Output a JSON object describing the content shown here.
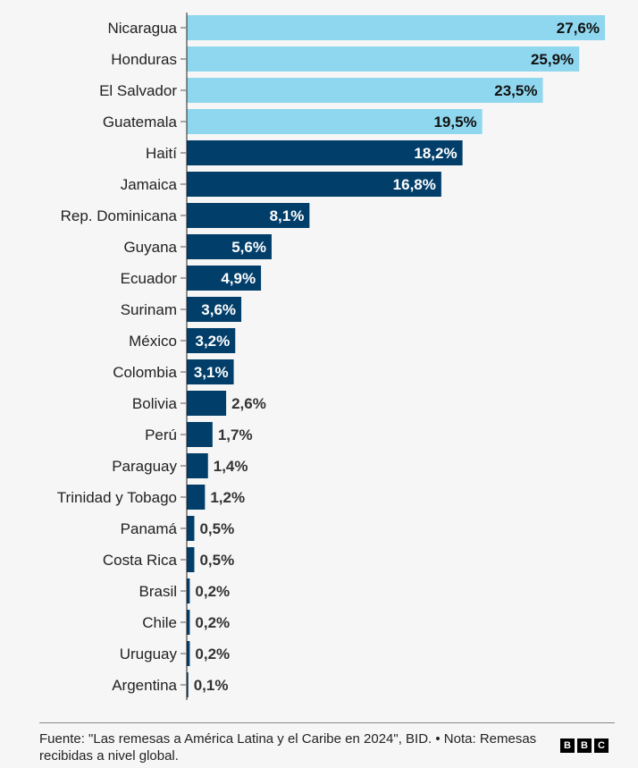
{
  "chart_data": {
    "type": "bar",
    "orientation": "horizontal",
    "categories": [
      "Nicaragua",
      "Honduras",
      "El Salvador",
      "Guatemala",
      "Haití",
      "Jamaica",
      "Rep. Dominicana",
      "Guyana",
      "Ecuador",
      "Surinam",
      "México",
      "Colombia",
      "Bolivia",
      "Perú",
      "Paraguay",
      "Trinidad y Tobago",
      "Panamá",
      "Costa Rica",
      "Brasil",
      "Chile",
      "Uruguay",
      "Argentina"
    ],
    "values": [
      27.6,
      25.9,
      23.5,
      19.5,
      18.2,
      16.8,
      8.1,
      5.6,
      4.9,
      3.6,
      3.2,
      3.1,
      2.6,
      1.7,
      1.4,
      1.2,
      0.5,
      0.5,
      0.2,
      0.2,
      0.2,
      0.1
    ],
    "labels": [
      "27,6%",
      "25,9%",
      "23,5%",
      "19,5%",
      "18,2%",
      "16,8%",
      "8,1%",
      "5,6%",
      "4,9%",
      "3,6%",
      "3,2%",
      "3,1%",
      "2,6%",
      "1,7%",
      "1,4%",
      "1,2%",
      "0,5%",
      "0,5%",
      "0,2%",
      "0,2%",
      "0,2%",
      "0,1%"
    ],
    "highlight_count": 4,
    "colors": {
      "highlight": "#8fd7ef",
      "default": "#023e6a"
    },
    "xlim": [
      0,
      27.6
    ]
  },
  "footer": {
    "source": "Fuente: \"Las remesas a América Latina y el Caribe en 2024\", BID. • Nota: Remesas recibidas a nivel global.",
    "logo": [
      "B",
      "B",
      "C"
    ]
  }
}
